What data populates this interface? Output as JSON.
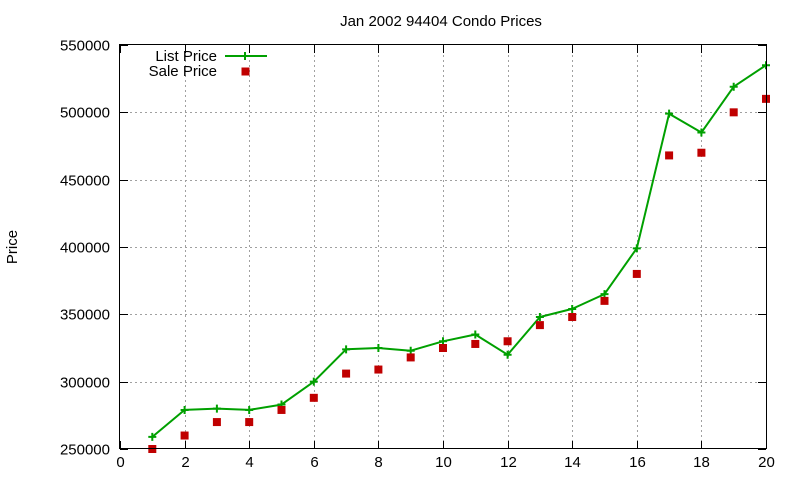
{
  "chart_data": {
    "type": "line",
    "title": "Jan 2002 94404 Condo Prices",
    "xlabel": "",
    "ylabel": "Price",
    "xlim": [
      0,
      20
    ],
    "ylim": [
      250000,
      550000
    ],
    "xticks": [
      0,
      2,
      4,
      6,
      8,
      10,
      12,
      14,
      16,
      18,
      20
    ],
    "yticks": [
      250000,
      300000,
      350000,
      400000,
      450000,
      500000,
      550000
    ],
    "grid": true,
    "legend_position": "top-left",
    "series": [
      {
        "name": "List Price",
        "style": "line-with-plus-markers",
        "color": "#00a000",
        "x": [
          1,
          2,
          3,
          4,
          5,
          6,
          7,
          8,
          9,
          10,
          11,
          12,
          13,
          14,
          15,
          16,
          17,
          18,
          19,
          20
        ],
        "y": [
          259000,
          279000,
          280000,
          279000,
          283000,
          300000,
          324000,
          325000,
          323000,
          330000,
          335000,
          320000,
          348000,
          354000,
          365000,
          399000,
          499000,
          485000,
          519000,
          535000
        ]
      },
      {
        "name": "Sale Price",
        "style": "square-markers",
        "color": "#c00000",
        "x": [
          1,
          2,
          3,
          4,
          5,
          6,
          7,
          8,
          9,
          10,
          11,
          12,
          13,
          14,
          15,
          16,
          17,
          18,
          19,
          20
        ],
        "y": [
          250000,
          260000,
          270000,
          270000,
          279000,
          288000,
          306000,
          309000,
          318000,
          325000,
          328000,
          330000,
          342000,
          348000,
          360000,
          380000,
          468000,
          470000,
          500000,
          510000
        ]
      }
    ]
  }
}
